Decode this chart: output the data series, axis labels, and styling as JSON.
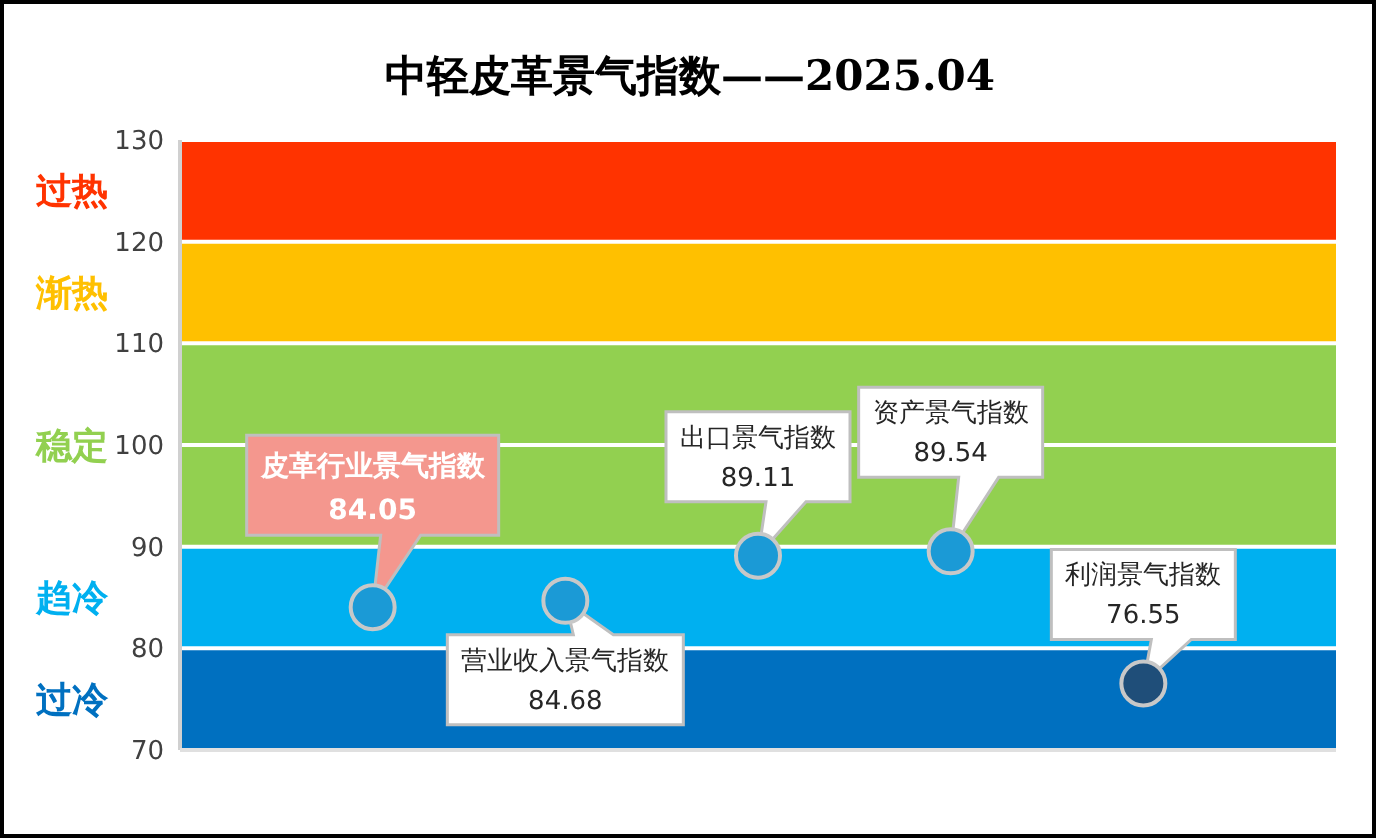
{
  "chart_data": {
    "type": "scatter",
    "title": "中轻皮革景气指数——2025.04",
    "categories": [
      "皮革行业景气指数",
      "营业收入景气指数",
      "出口景气指数",
      "资产景气指数",
      "利润景气指数"
    ],
    "values": [
      84.05,
      84.68,
      89.11,
      89.54,
      76.55
    ],
    "colors": [
      "#1b9ad6",
      "#1b9ad6",
      "#1b9ad6",
      "#1b9ad6",
      "#1f4e79"
    ],
    "marker": "circle",
    "data_labels": true,
    "ylim": [
      70,
      130
    ],
    "yticks": [
      70,
      80,
      90,
      100,
      110,
      120,
      130
    ],
    "grid": "y",
    "tick_labels": "y",
    "bands": [
      {
        "axis": "y",
        "from": 70,
        "to": 80,
        "label": "过冷",
        "color": "#0070c0"
      },
      {
        "axis": "y",
        "from": 80,
        "to": 90,
        "label": "趋冷",
        "color": "#00b0f0"
      },
      {
        "axis": "y",
        "from": 90,
        "to": 110,
        "label": "稳定",
        "color": "#92d050"
      },
      {
        "axis": "y",
        "from": 110,
        "to": 120,
        "label": "渐热",
        "color": "#ffc000"
      },
      {
        "axis": "y",
        "from": 120,
        "to": 130,
        "label": "过热",
        "color": "#ff3300"
      }
    ]
  }
}
